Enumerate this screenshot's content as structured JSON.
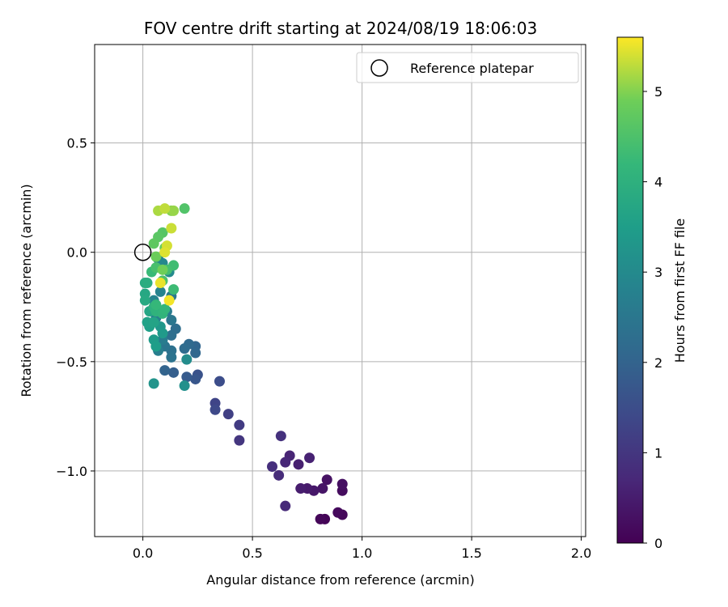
{
  "chart_data": {
    "type": "scatter",
    "title": "FOV centre drift starting at 2024/08/19 18:06:03",
    "xlabel": "Angular distance from reference (arcmin)",
    "ylabel": "Rotation from reference (arcmin)",
    "xlim": [
      -0.22,
      2.02
    ],
    "ylim": [
      -1.3,
      0.95
    ],
    "xticks": [
      0.0,
      0.5,
      1.0,
      1.5,
      2.0
    ],
    "xtick_labels": [
      "0.0",
      "0.5",
      "1.0",
      "1.5",
      "2.0"
    ],
    "yticks": [
      0.5,
      0.0,
      -0.5,
      -1.0
    ],
    "ytick_labels": [
      "0.5",
      "0.0",
      "−0.5",
      "−1.0"
    ],
    "grid": true,
    "legend": {
      "placement": "upper-right",
      "entries": [
        "Reference platepar"
      ]
    },
    "reference_point": {
      "x": 0.0,
      "y": 0.0
    },
    "colorbar": {
      "label": "Hours from first FF file",
      "range": [
        0,
        5.6
      ],
      "ticks": [
        0,
        1,
        2,
        3,
        4,
        5
      ],
      "tick_labels": [
        "0",
        "1",
        "2",
        "3",
        "4",
        "5"
      ],
      "colormap": "viridis"
    },
    "points": [
      {
        "x": 0.83,
        "y": -1.22,
        "h": 0.05
      },
      {
        "x": 0.81,
        "y": -1.22,
        "h": 0.1
      },
      {
        "x": 0.91,
        "y": -1.2,
        "h": 0.12
      },
      {
        "x": 0.89,
        "y": -1.19,
        "h": 0.15
      },
      {
        "x": 0.91,
        "y": -1.09,
        "h": 0.2
      },
      {
        "x": 0.91,
        "y": -1.06,
        "h": 0.25
      },
      {
        "x": 0.84,
        "y": -1.04,
        "h": 0.3
      },
      {
        "x": 0.82,
        "y": -1.08,
        "h": 0.35
      },
      {
        "x": 0.78,
        "y": -1.09,
        "h": 0.4
      },
      {
        "x": 0.75,
        "y": -1.08,
        "h": 0.45
      },
      {
        "x": 0.72,
        "y": -1.08,
        "h": 0.5
      },
      {
        "x": 0.71,
        "y": -0.97,
        "h": 0.55
      },
      {
        "x": 0.76,
        "y": -0.94,
        "h": 0.6
      },
      {
        "x": 0.67,
        "y": -0.93,
        "h": 0.65
      },
      {
        "x": 0.65,
        "y": -0.96,
        "h": 0.7
      },
      {
        "x": 0.65,
        "y": -1.16,
        "h": 0.75
      },
      {
        "x": 0.62,
        "y": -1.02,
        "h": 0.8
      },
      {
        "x": 0.59,
        "y": -0.98,
        "h": 0.85
      },
      {
        "x": 0.63,
        "y": -0.84,
        "h": 0.9
      },
      {
        "x": 0.44,
        "y": -0.86,
        "h": 1.0
      },
      {
        "x": 0.44,
        "y": -0.79,
        "h": 1.1
      },
      {
        "x": 0.39,
        "y": -0.74,
        "h": 1.2
      },
      {
        "x": 0.33,
        "y": -0.69,
        "h": 1.3
      },
      {
        "x": 0.33,
        "y": -0.72,
        "h": 1.4
      },
      {
        "x": 0.35,
        "y": -0.59,
        "h": 1.5
      },
      {
        "x": 0.25,
        "y": -0.56,
        "h": 1.6
      },
      {
        "x": 0.24,
        "y": -0.58,
        "h": 1.7
      },
      {
        "x": 0.2,
        "y": -0.57,
        "h": 1.8
      },
      {
        "x": 0.14,
        "y": -0.55,
        "h": 1.9
      },
      {
        "x": 0.1,
        "y": -0.54,
        "h": 2.0
      },
      {
        "x": 0.24,
        "y": -0.43,
        "h": 2.05
      },
      {
        "x": 0.24,
        "y": -0.46,
        "h": 2.1
      },
      {
        "x": 0.21,
        "y": -0.42,
        "h": 2.15
      },
      {
        "x": 0.19,
        "y": -0.44,
        "h": 2.2
      },
      {
        "x": 0.15,
        "y": -0.35,
        "h": 2.25
      },
      {
        "x": 0.13,
        "y": -0.38,
        "h": 2.3
      },
      {
        "x": 0.13,
        "y": -0.45,
        "h": 2.35
      },
      {
        "x": 0.13,
        "y": -0.48,
        "h": 2.4
      },
      {
        "x": 0.1,
        "y": -0.43,
        "h": 2.45
      },
      {
        "x": 0.13,
        "y": -0.31,
        "h": 2.5
      },
      {
        "x": 0.13,
        "y": -0.2,
        "h": 2.55
      },
      {
        "x": 0.11,
        "y": -0.27,
        "h": 2.6
      },
      {
        "x": 0.09,
        "y": -0.4,
        "h": 2.65
      },
      {
        "x": 0.07,
        "y": -0.45,
        "h": 2.7
      },
      {
        "x": 0.06,
        "y": -0.3,
        "h": 2.75
      },
      {
        "x": 0.08,
        "y": -0.18,
        "h": 2.8
      },
      {
        "x": 0.05,
        "y": -0.22,
        "h": 2.85
      },
      {
        "x": 0.07,
        "y": -0.03,
        "h": 2.9
      },
      {
        "x": 0.09,
        "y": -0.05,
        "h": 2.95
      },
      {
        "x": 0.12,
        "y": -0.09,
        "h": 3.0
      },
      {
        "x": 0.2,
        "y": -0.49,
        "h": 3.05
      },
      {
        "x": 0.19,
        "y": -0.61,
        "h": 3.15
      },
      {
        "x": 0.05,
        "y": -0.6,
        "h": 3.25
      },
      {
        "x": 0.08,
        "y": -0.34,
        "h": 3.35
      },
      {
        "x": 0.09,
        "y": -0.37,
        "h": 3.4
      },
      {
        "x": 0.05,
        "y": -0.4,
        "h": 3.45
      },
      {
        "x": 0.06,
        "y": -0.43,
        "h": 3.5
      },
      {
        "x": 0.03,
        "y": -0.34,
        "h": 3.55
      },
      {
        "x": 0.02,
        "y": -0.32,
        "h": 3.6
      },
      {
        "x": 0.05,
        "y": -0.32,
        "h": 3.65
      },
      {
        "x": 0.03,
        "y": -0.27,
        "h": 3.7
      },
      {
        "x": 0.01,
        "y": -0.19,
        "h": 3.75
      },
      {
        "x": 0.01,
        "y": -0.22,
        "h": 3.8
      },
      {
        "x": 0.01,
        "y": -0.14,
        "h": 3.85
      },
      {
        "x": 0.02,
        "y": -0.14,
        "h": 3.9
      },
      {
        "x": 0.05,
        "y": -0.25,
        "h": 4.0
      },
      {
        "x": 0.06,
        "y": -0.27,
        "h": 4.05
      },
      {
        "x": 0.09,
        "y": -0.28,
        "h": 4.1
      },
      {
        "x": 0.1,
        "y": -0.26,
        "h": 4.15
      },
      {
        "x": 0.06,
        "y": -0.24,
        "h": 4.2
      },
      {
        "x": 0.04,
        "y": -0.09,
        "h": 4.25
      },
      {
        "x": 0.14,
        "y": -0.17,
        "h": 4.3
      },
      {
        "x": 0.14,
        "y": -0.06,
        "h": 4.35
      },
      {
        "x": 0.11,
        "y": -0.08,
        "h": 4.4
      },
      {
        "x": 0.06,
        "y": -0.07,
        "h": 4.45
      },
      {
        "x": 0.09,
        "y": -0.13,
        "h": 4.5
      },
      {
        "x": 0.19,
        "y": 0.2,
        "h": 4.55
      },
      {
        "x": 0.09,
        "y": 0.09,
        "h": 4.6
      },
      {
        "x": 0.07,
        "y": 0.07,
        "h": 4.65
      },
      {
        "x": 0.05,
        "y": 0.04,
        "h": 4.7
      },
      {
        "x": 0.1,
        "y": 0.02,
        "h": 4.8
      },
      {
        "x": 0.06,
        "y": -0.02,
        "h": 4.85
      },
      {
        "x": 0.09,
        "y": -0.08,
        "h": 4.9
      },
      {
        "x": 0.13,
        "y": 0.19,
        "h": 5.0
      },
      {
        "x": 0.14,
        "y": 0.19,
        "h": 5.1
      },
      {
        "x": 0.07,
        "y": 0.19,
        "h": 5.2
      },
      {
        "x": 0.1,
        "y": 0.2,
        "h": 5.3
      },
      {
        "x": 0.13,
        "y": 0.11,
        "h": 5.35
      },
      {
        "x": 0.11,
        "y": 0.03,
        "h": 5.4
      },
      {
        "x": 0.1,
        "y": 0.0,
        "h": 5.45
      },
      {
        "x": 0.08,
        "y": -0.14,
        "h": 5.5
      },
      {
        "x": 0.12,
        "y": -0.22,
        "h": 5.55
      }
    ]
  }
}
